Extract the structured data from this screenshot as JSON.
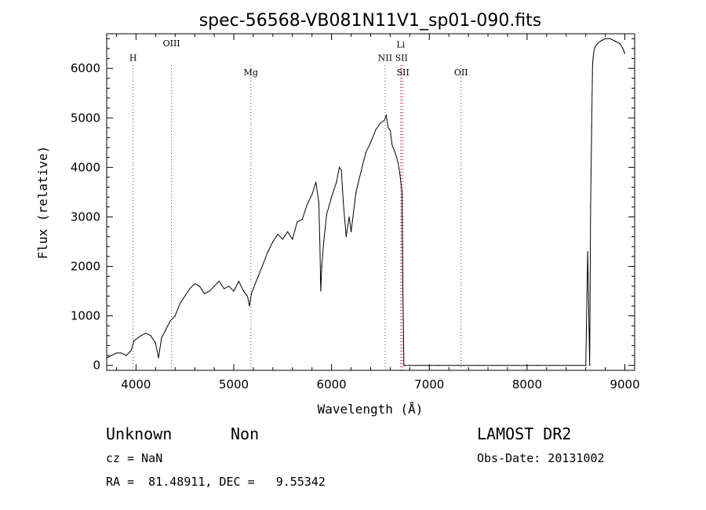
{
  "chart_data": {
    "type": "line",
    "title": "spec-56568-VB081N11V1_sp01-090.fits",
    "xlabel": "Wavelength (Å)",
    "ylabel": "Flux (relative)",
    "xlim": [
      3700,
      9100
    ],
    "ylim": [
      -100,
      6700
    ],
    "xticks": [
      4000,
      5000,
      6000,
      7000,
      8000,
      9000
    ],
    "yticks": [
      0,
      1000,
      2000,
      3000,
      4000,
      5000,
      6000
    ],
    "grid": false,
    "series": [
      {
        "color": "#000000",
        "x": [
          3700,
          3750,
          3800,
          3850,
          3900,
          3950,
          3980,
          4050,
          4100,
          4150,
          4200,
          4230,
          4260,
          4300,
          4350,
          4400,
          4450,
          4500,
          4550,
          4600,
          4650,
          4700,
          4750,
          4800,
          4850,
          4900,
          4950,
          5000,
          5050,
          5100,
          5140,
          5160,
          5180,
          5200,
          5250,
          5300,
          5350,
          5400,
          5450,
          5500,
          5550,
          5600,
          5650,
          5700,
          5750,
          5800,
          5840,
          5870,
          5880,
          5890,
          5900,
          5920,
          5950,
          6000,
          6050,
          6080,
          6100,
          6120,
          6150,
          6180,
          6200,
          6250,
          6300,
          6350,
          6400,
          6450,
          6500,
          6540,
          6560,
          6580,
          6600,
          6620,
          6650,
          6680,
          6700,
          6720,
          6730,
          6740,
          6800,
          6900,
          7000,
          7100,
          7200,
          7300,
          7400,
          7500,
          7600,
          7700,
          7800,
          7900,
          8000,
          8100,
          8200,
          8300,
          8400,
          8500,
          8600,
          8620,
          8640,
          8650,
          8660,
          8670,
          8680,
          8690,
          8700,
          8720,
          8750,
          8800,
          8850,
          8900,
          8950,
          8980,
          9000
        ],
        "values": [
          150,
          200,
          250,
          250,
          200,
          300,
          500,
          600,
          650,
          600,
          450,
          150,
          550,
          700,
          900,
          1000,
          1250,
          1400,
          1550,
          1650,
          1600,
          1450,
          1500,
          1600,
          1700,
          1550,
          1600,
          1500,
          1700,
          1500,
          1400,
          1200,
          1450,
          1550,
          1800,
          2050,
          2300,
          2500,
          2650,
          2550,
          2700,
          2550,
          2900,
          2950,
          3250,
          3450,
          3700,
          3300,
          2500,
          1500,
          2000,
          2500,
          3050,
          3400,
          3700,
          4000,
          3950,
          3300,
          2600,
          3000,
          2700,
          3500,
          3900,
          4300,
          4500,
          4750,
          4900,
          4950,
          5050,
          4800,
          4750,
          4450,
          4300,
          4100,
          3850,
          3500,
          1500,
          0,
          0,
          0,
          0,
          0,
          0,
          0,
          0,
          0,
          0,
          0,
          0,
          0,
          0,
          0,
          0,
          0,
          0,
          0,
          0,
          2300,
          0,
          3200,
          4800,
          6100,
          6300,
          6400,
          6450,
          6500,
          6550,
          6600,
          6600,
          6550,
          6500,
          6400,
          6300
        ]
      }
    ],
    "lines": [
      {
        "label": "H",
        "x": 3970,
        "color": "#a03030",
        "label_y": 6150
      },
      {
        "label": "OIII",
        "x": 4363,
        "color": "#a03030",
        "label_y": 6450
      },
      {
        "label": "Mg",
        "x": 5175,
        "color": "#a03030",
        "label_y": 5860
      },
      {
        "label": "NII",
        "x": 6548,
        "color": "#a03030",
        "label_y": 6150
      },
      {
        "label": "Li",
        "x": 6708,
        "color": "#a03030",
        "label_y": 6420
      },
      {
        "label": "SII",
        "x": 6716,
        "color": "#cc2020",
        "label_y": 6150
      },
      {
        "label": "SII",
        "x": 6731,
        "color": "#cc2020",
        "label_y": 5860
      },
      {
        "label": "OII",
        "x": 7325,
        "color": "#a03030",
        "label_y": 5860
      }
    ]
  },
  "footer": {
    "object_class": "Unknown",
    "subclass": "Non",
    "survey": "LAMOST DR2",
    "cz": "cz = NaN",
    "obs_date": "Obs-Date: 20131002",
    "coords": "RA =  81.48911, DEC =   9.55342"
  }
}
